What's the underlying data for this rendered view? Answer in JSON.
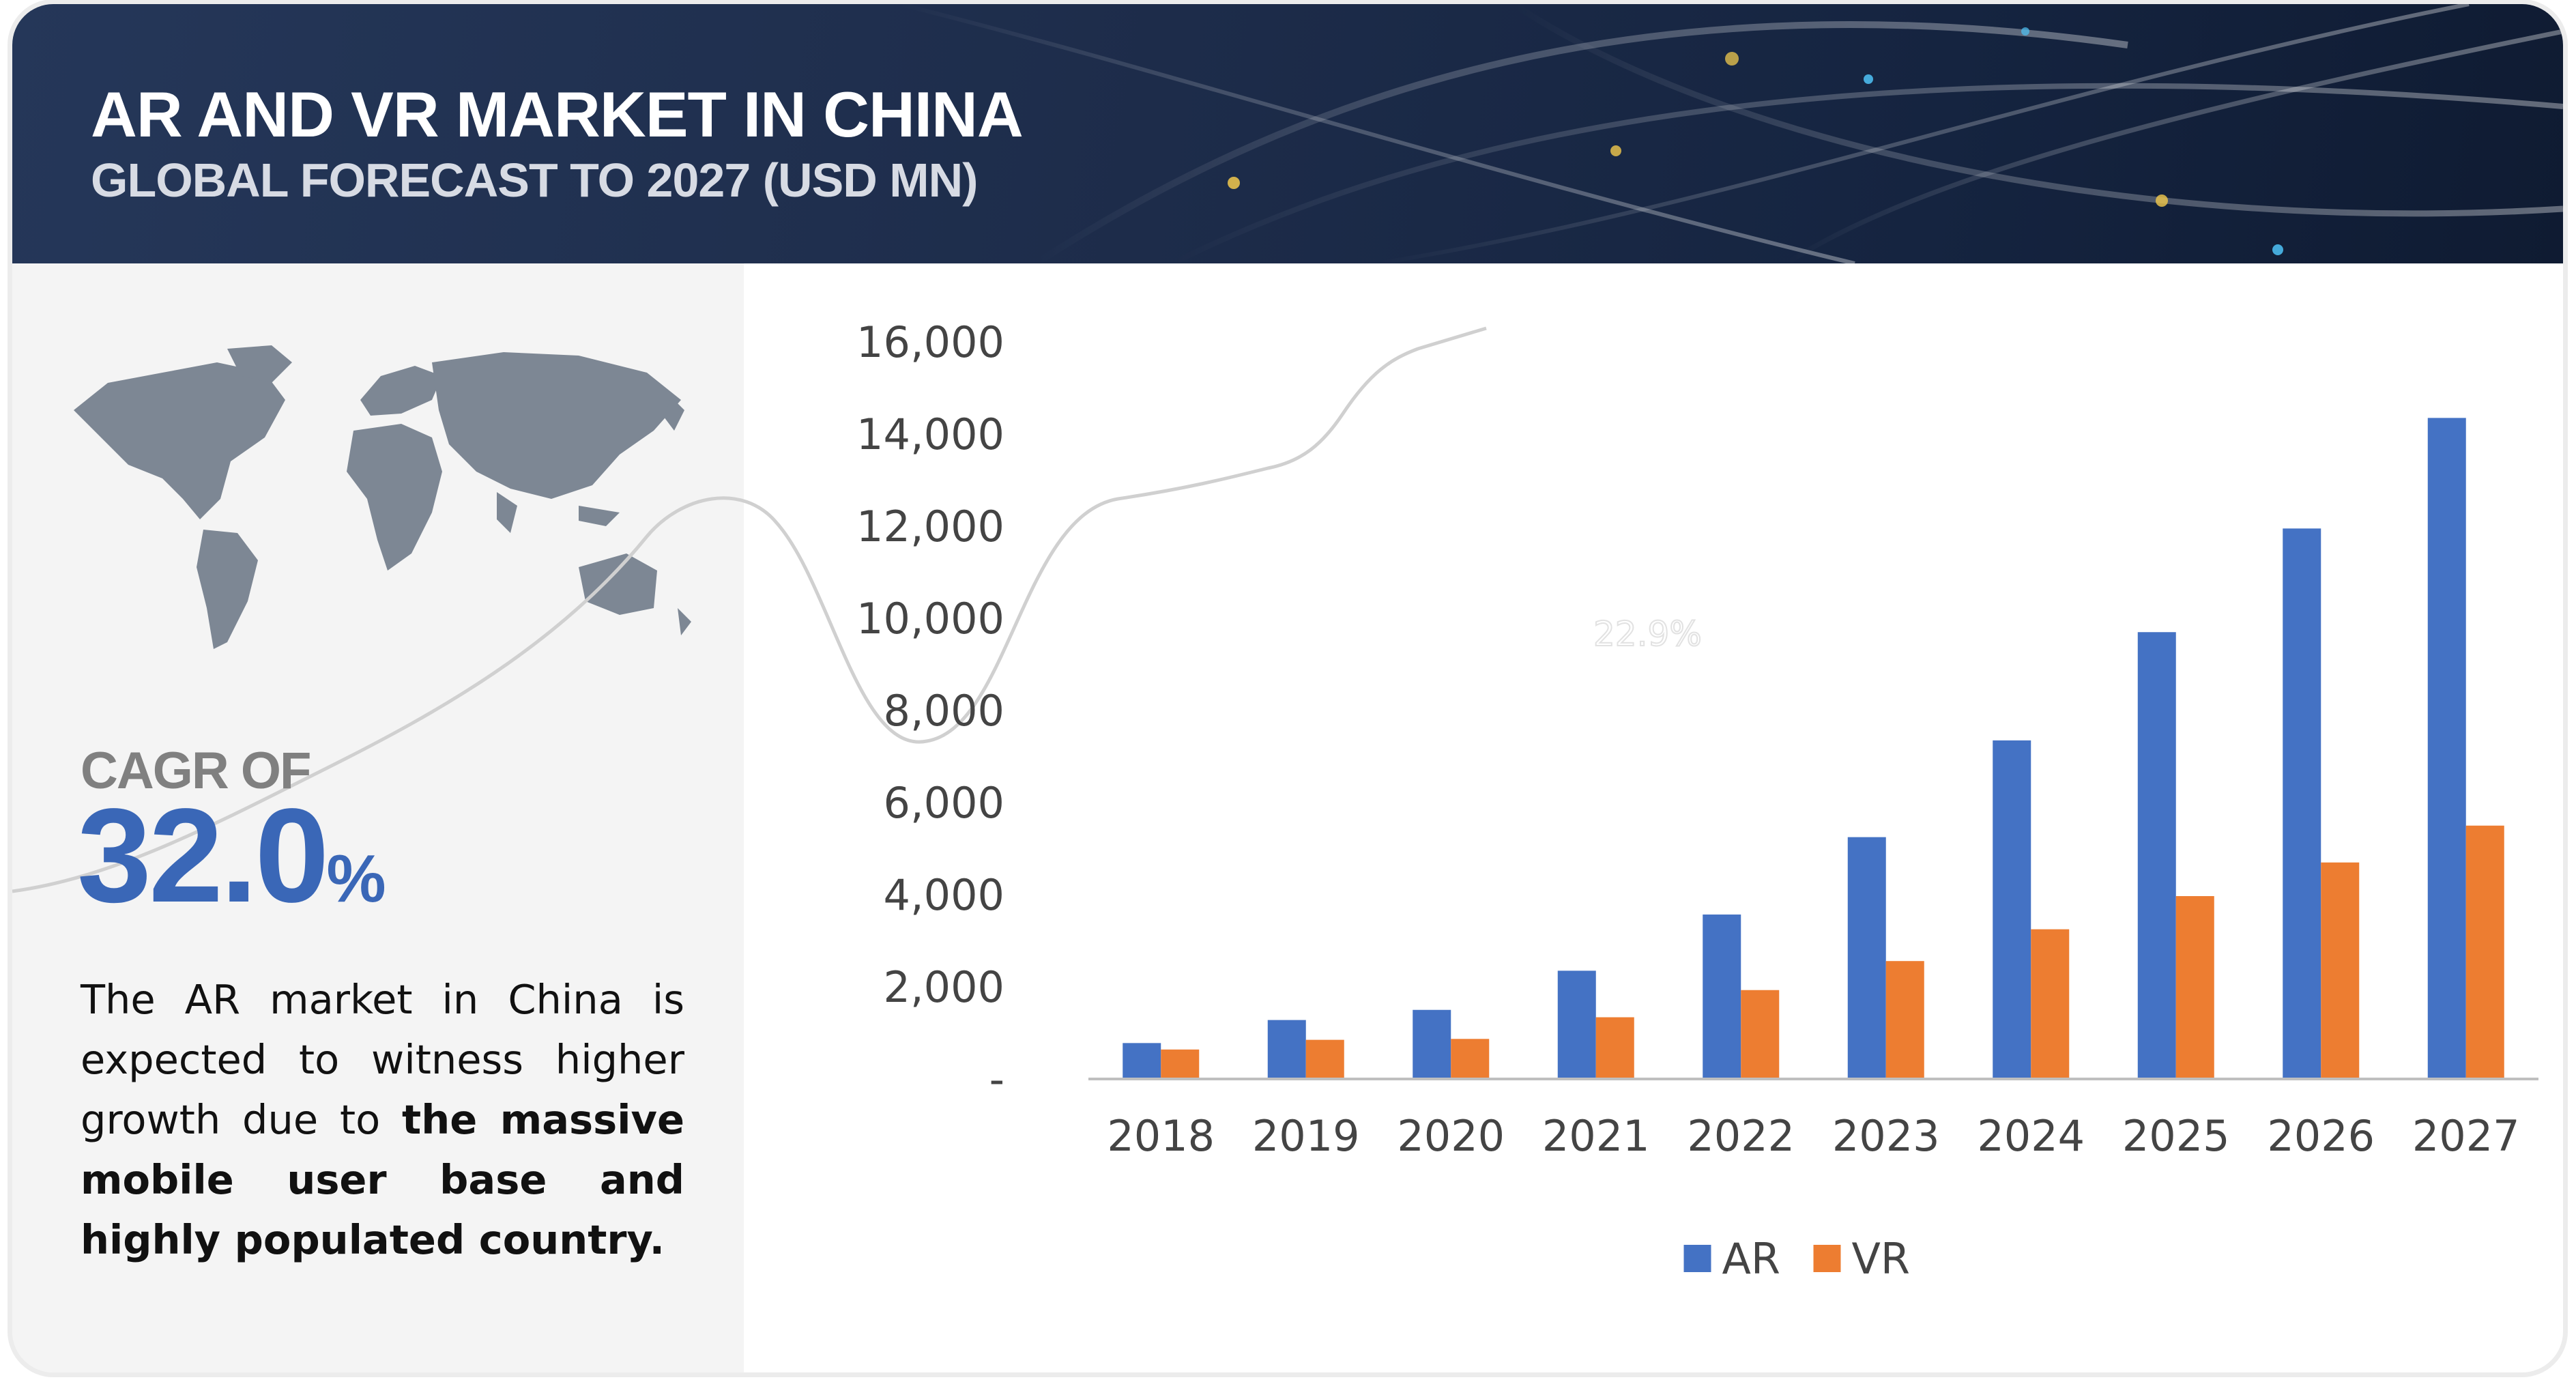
{
  "header": {
    "title": "AR AND VR MARKET IN CHINA",
    "subtitle": "GLOBAL FORECAST TO 2027 (USD MN)"
  },
  "highlight": {
    "cagr_label": "CAGR OF",
    "cagr_value": "32.0",
    "cagr_unit": "%",
    "description_plain": "The AR market in China is expected to witness higher growth due to",
    "description_bold": "the massive mobile user base and highly populated country."
  },
  "chart_data": {
    "type": "bar",
    "title": "",
    "xlabel": "",
    "ylabel": "",
    "ylim": [
      0,
      16000
    ],
    "yticks": [
      "-",
      "2,000",
      "4,000",
      "6,000",
      "8,000",
      "10,000",
      "12,000",
      "14,000",
      "16,000"
    ],
    "categories": [
      "2018",
      "2019",
      "2020",
      "2021",
      "2022",
      "2023",
      "2024",
      "2025",
      "2026",
      "2027"
    ],
    "series": [
      {
        "name": "AR",
        "color": "#4472c4",
        "values": [
          780,
          1280,
          1500,
          2350,
          3570,
          5250,
          7350,
          9700,
          11950,
          14350
        ]
      },
      {
        "name": "VR",
        "color": "#ed7d31",
        "values": [
          640,
          850,
          870,
          1340,
          1930,
          2560,
          3250,
          3970,
          4700,
          5500
        ]
      }
    ],
    "legend": "bottom-center",
    "grid": false,
    "annotation": "22.9%"
  }
}
